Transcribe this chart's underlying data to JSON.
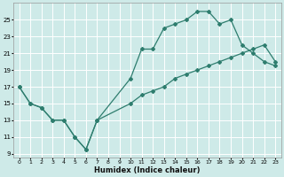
{
  "xlabel": "Humidex (Indice chaleur)",
  "bg_color": "#ceeae8",
  "grid_color": "#ffffff",
  "line_color": "#2e7d6e",
  "xlim": [
    -0.5,
    23.5
  ],
  "ylim": [
    8.5,
    27
  ],
  "xticks": [
    0,
    1,
    2,
    3,
    4,
    5,
    6,
    7,
    8,
    9,
    10,
    11,
    12,
    13,
    14,
    15,
    16,
    17,
    18,
    19,
    20,
    21,
    22,
    23
  ],
  "yticks": [
    9,
    11,
    13,
    15,
    17,
    19,
    21,
    23,
    25
  ],
  "line1_x": [
    0,
    1,
    2,
    3,
    4,
    5,
    6,
    7,
    10,
    11,
    12,
    13,
    14,
    15,
    16,
    17,
    18,
    19,
    20,
    21,
    22,
    23
  ],
  "line1_y": [
    17,
    15,
    14.5,
    13,
    13,
    11,
    9.5,
    13,
    18,
    21.5,
    21.5,
    24,
    24.5,
    25,
    26,
    26,
    24.5,
    25,
    22,
    21,
    20,
    19.5
  ],
  "line2_x": [
    0,
    1,
    2,
    3,
    4,
    5,
    6,
    7,
    10,
    11,
    12,
    13,
    14,
    15,
    16,
    17,
    18,
    19,
    20,
    21,
    22,
    23
  ],
  "line2_y": [
    17,
    15,
    14.5,
    13,
    13,
    11,
    9.5,
    13,
    15,
    16,
    16.5,
    17,
    18,
    18.5,
    19,
    19.5,
    20,
    20.5,
    21,
    21.5,
    22,
    20
  ]
}
